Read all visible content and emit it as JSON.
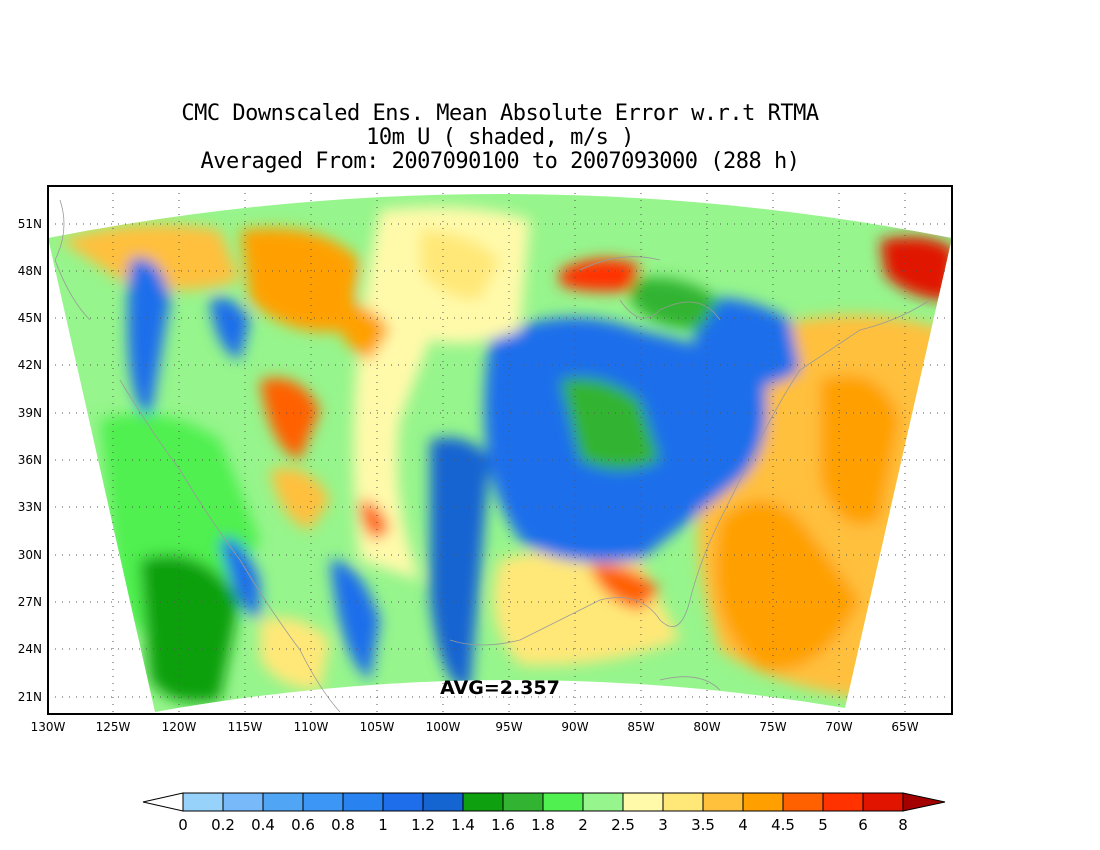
{
  "title_lines": [
    "CMC Downscaled Ens. Mean Absolute Error w.r.t RTMA",
    "10m U ( shaded, m/s )",
    "Averaged From: 2007090100 to 2007093000 (288 h)"
  ],
  "lat_labels": [
    "51N",
    "48N",
    "45N",
    "42N",
    "39N",
    "36N",
    "33N",
    "30N",
    "27N",
    "24N",
    "21N"
  ],
  "lon_labels": [
    "130W",
    "125W",
    "120W",
    "115W",
    "110W",
    "105W",
    "100W",
    "95W",
    "90W",
    "85W",
    "80W",
    "75W",
    "70W",
    "65W"
  ],
  "average_label": "AVG=2.357",
  "colorbar": {
    "labels": [
      "0",
      "0.2",
      "0.4",
      "0.6",
      "0.8",
      "1",
      "1.2",
      "1.4",
      "1.6",
      "1.8",
      "2",
      "2.5",
      "3",
      "3.5",
      "4",
      "4.5",
      "5",
      "6",
      "8"
    ],
    "colors": [
      "#96d2fa",
      "#78b9fa",
      "#50a5f5",
      "#3c96f5",
      "#2882f0",
      "#1e6eeb",
      "#1464d2",
      "#0fa00f",
      "#32b432",
      "#50f050",
      "#96f58c",
      "#fffaaa",
      "#ffe878",
      "#ffc03c",
      "#ffa000",
      "#ff6000",
      "#ff3200",
      "#e11400",
      "#a50000"
    ]
  }
}
